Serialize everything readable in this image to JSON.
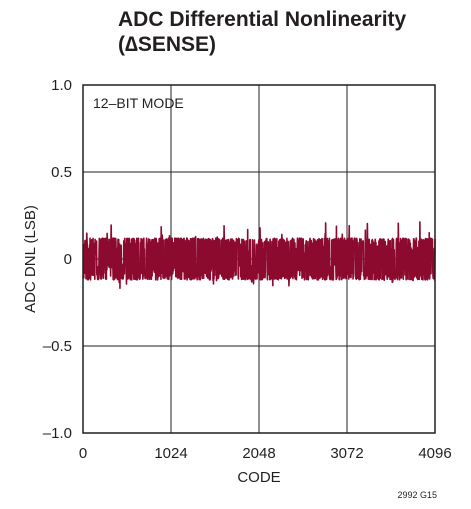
{
  "chart_data": {
    "type": "line",
    "title_lines": [
      "ADC Differential Nonlinearity",
      "(∆SENSE)"
    ],
    "xlabel": "CODE",
    "ylabel": "ADC DNL (LSB)",
    "xlim": [
      0,
      4096
    ],
    "ylim": [
      -1.0,
      1.0
    ],
    "x_ticks": [
      0,
      1024,
      2048,
      3072,
      4096
    ],
    "x_tick_labels": [
      "0",
      "1024",
      "2048",
      "3072",
      "4096"
    ],
    "y_ticks": [
      -1.0,
      -0.5,
      0,
      0.5,
      1.0
    ],
    "y_tick_labels": [
      "–1.0",
      "–0.5",
      "0",
      "0.5",
      "1.0"
    ],
    "grid": true,
    "annotation": "12–BIT MODE",
    "figure_id": "2992 G15",
    "series": [
      {
        "color": "#8b0a2e",
        "style": "dense noise band",
        "x_range": [
          0,
          4096
        ],
        "typical_low": -0.12,
        "typical_high": 0.12,
        "peak_high": 0.22,
        "peak_low": -0.17
      }
    ]
  }
}
